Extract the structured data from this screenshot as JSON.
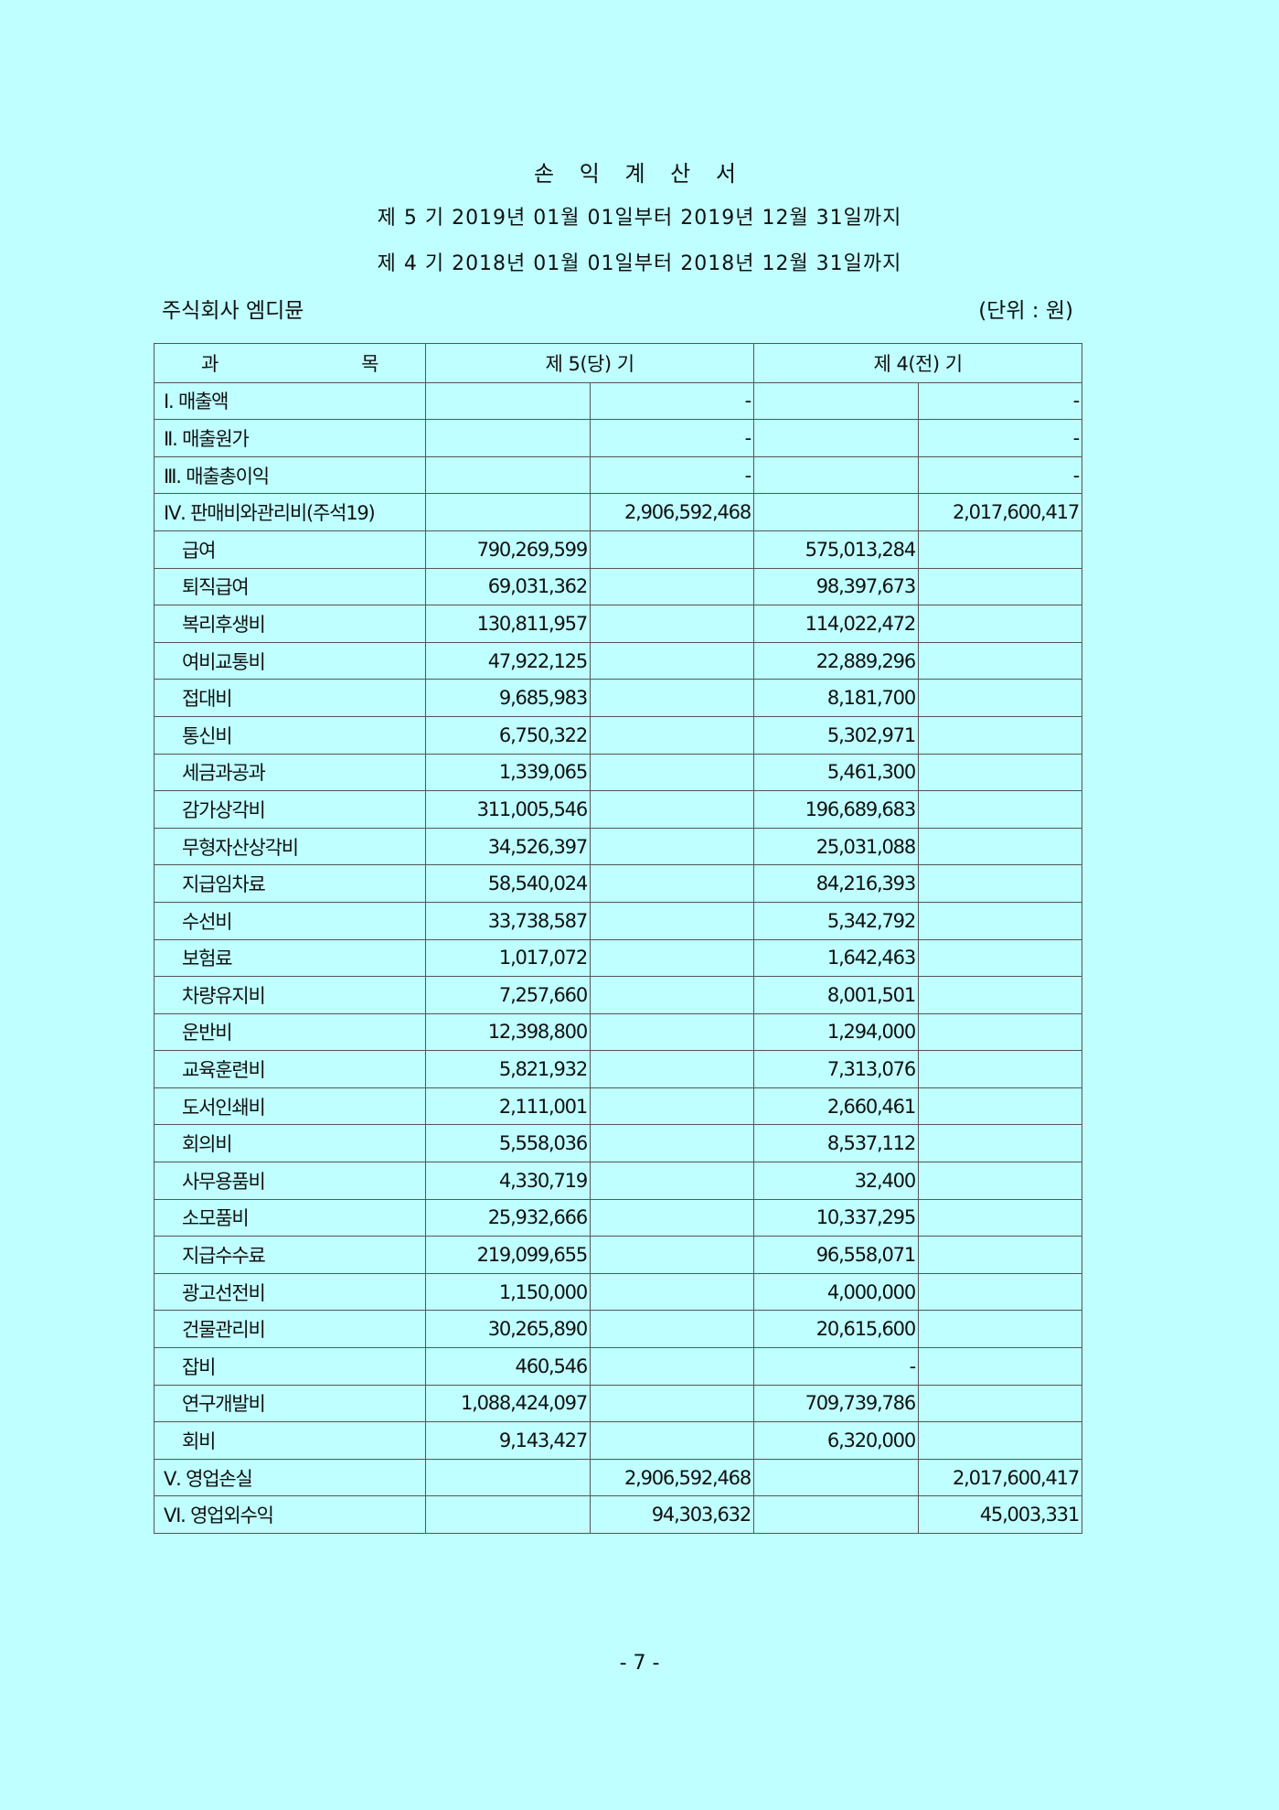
{
  "title": "손 익 계 산 서",
  "period_current": "제 5 기 2019년 01월 01일부터 2019년 12월 31일까지",
  "period_previous": "제 4 기 2018년 01월 01일부터 2018년 12월 31일까지",
  "company": "주식회사 엠디뮨",
  "unit": "(단위 : 원)",
  "headers": {
    "item_left": "과",
    "item_right": "목",
    "current": "제 5(당) 기",
    "previous": "제 4(전) 기"
  },
  "rows": [
    {
      "label": "Ⅰ. 매출액",
      "level": 1,
      "cur_detail": "",
      "cur_total": "-",
      "prev_detail": "",
      "prev_total": "-"
    },
    {
      "label": "Ⅱ. 매출원가",
      "level": 1,
      "cur_detail": "",
      "cur_total": "-",
      "prev_detail": "",
      "prev_total": "-"
    },
    {
      "label": "Ⅲ. 매출총이익",
      "level": 1,
      "cur_detail": "",
      "cur_total": "-",
      "prev_detail": "",
      "prev_total": "-"
    },
    {
      "label": "Ⅳ. 판매비와관리비(주석19)",
      "level": 1,
      "cur_detail": "",
      "cur_total": "2,906,592,468",
      "prev_detail": "",
      "prev_total": "2,017,600,417"
    },
    {
      "label": "급여",
      "level": 2,
      "cur_detail": "790,269,599",
      "cur_total": "",
      "prev_detail": "575,013,284",
      "prev_total": ""
    },
    {
      "label": "퇴직급여",
      "level": 2,
      "cur_detail": "69,031,362",
      "cur_total": "",
      "prev_detail": "98,397,673",
      "prev_total": ""
    },
    {
      "label": "복리후생비",
      "level": 2,
      "cur_detail": "130,811,957",
      "cur_total": "",
      "prev_detail": "114,022,472",
      "prev_total": ""
    },
    {
      "label": "여비교통비",
      "level": 2,
      "cur_detail": "47,922,125",
      "cur_total": "",
      "prev_detail": "22,889,296",
      "prev_total": ""
    },
    {
      "label": "접대비",
      "level": 2,
      "cur_detail": "9,685,983",
      "cur_total": "",
      "prev_detail": "8,181,700",
      "prev_total": ""
    },
    {
      "label": "통신비",
      "level": 2,
      "cur_detail": "6,750,322",
      "cur_total": "",
      "prev_detail": "5,302,971",
      "prev_total": ""
    },
    {
      "label": "세금과공과",
      "level": 2,
      "cur_detail": "1,339,065",
      "cur_total": "",
      "prev_detail": "5,461,300",
      "prev_total": ""
    },
    {
      "label": "감가상각비",
      "level": 2,
      "cur_detail": "311,005,546",
      "cur_total": "",
      "prev_detail": "196,689,683",
      "prev_total": ""
    },
    {
      "label": "무형자산상각비",
      "level": 2,
      "cur_detail": "34,526,397",
      "cur_total": "",
      "prev_detail": "25,031,088",
      "prev_total": ""
    },
    {
      "label": "지급임차료",
      "level": 2,
      "cur_detail": "58,540,024",
      "cur_total": "",
      "prev_detail": "84,216,393",
      "prev_total": ""
    },
    {
      "label": "수선비",
      "level": 2,
      "cur_detail": "33,738,587",
      "cur_total": "",
      "prev_detail": "5,342,792",
      "prev_total": ""
    },
    {
      "label": "보험료",
      "level": 2,
      "cur_detail": "1,017,072",
      "cur_total": "",
      "prev_detail": "1,642,463",
      "prev_total": ""
    },
    {
      "label": "차량유지비",
      "level": 2,
      "cur_detail": "7,257,660",
      "cur_total": "",
      "prev_detail": "8,001,501",
      "prev_total": ""
    },
    {
      "label": "운반비",
      "level": 2,
      "cur_detail": "12,398,800",
      "cur_total": "",
      "prev_detail": "1,294,000",
      "prev_total": ""
    },
    {
      "label": "교육훈련비",
      "level": 2,
      "cur_detail": "5,821,932",
      "cur_total": "",
      "prev_detail": "7,313,076",
      "prev_total": ""
    },
    {
      "label": "도서인쇄비",
      "level": 2,
      "cur_detail": "2,111,001",
      "cur_total": "",
      "prev_detail": "2,660,461",
      "prev_total": ""
    },
    {
      "label": "회의비",
      "level": 2,
      "cur_detail": "5,558,036",
      "cur_total": "",
      "prev_detail": "8,537,112",
      "prev_total": ""
    },
    {
      "label": "사무용품비",
      "level": 2,
      "cur_detail": "4,330,719",
      "cur_total": "",
      "prev_detail": "32,400",
      "prev_total": ""
    },
    {
      "label": "소모품비",
      "level": 2,
      "cur_detail": "25,932,666",
      "cur_total": "",
      "prev_detail": "10,337,295",
      "prev_total": ""
    },
    {
      "label": "지급수수료",
      "level": 2,
      "cur_detail": "219,099,655",
      "cur_total": "",
      "prev_detail": "96,558,071",
      "prev_total": ""
    },
    {
      "label": "광고선전비",
      "level": 2,
      "cur_detail": "1,150,000",
      "cur_total": "",
      "prev_detail": "4,000,000",
      "prev_total": ""
    },
    {
      "label": "건물관리비",
      "level": 2,
      "cur_detail": "30,265,890",
      "cur_total": "",
      "prev_detail": "20,615,600",
      "prev_total": ""
    },
    {
      "label": "잡비",
      "level": 2,
      "cur_detail": "460,546",
      "cur_total": "",
      "prev_detail": "-",
      "prev_total": ""
    },
    {
      "label": "연구개발비",
      "level": 2,
      "cur_detail": "1,088,424,097",
      "cur_total": "",
      "prev_detail": "709,739,786",
      "prev_total": ""
    },
    {
      "label": "회비",
      "level": 2,
      "cur_detail": "9,143,427",
      "cur_total": "",
      "prev_detail": "6,320,000",
      "prev_total": ""
    },
    {
      "label": "Ⅴ. 영업손실",
      "level": 1,
      "cur_detail": "",
      "cur_total": "2,906,592,468",
      "prev_detail": "",
      "prev_total": "2,017,600,417"
    },
    {
      "label": "Ⅵ. 영업외수익",
      "level": 1,
      "cur_detail": "",
      "cur_total": "94,303,632",
      "prev_detail": "",
      "prev_total": "45,003,331"
    }
  ],
  "page_number": "- 7 -"
}
